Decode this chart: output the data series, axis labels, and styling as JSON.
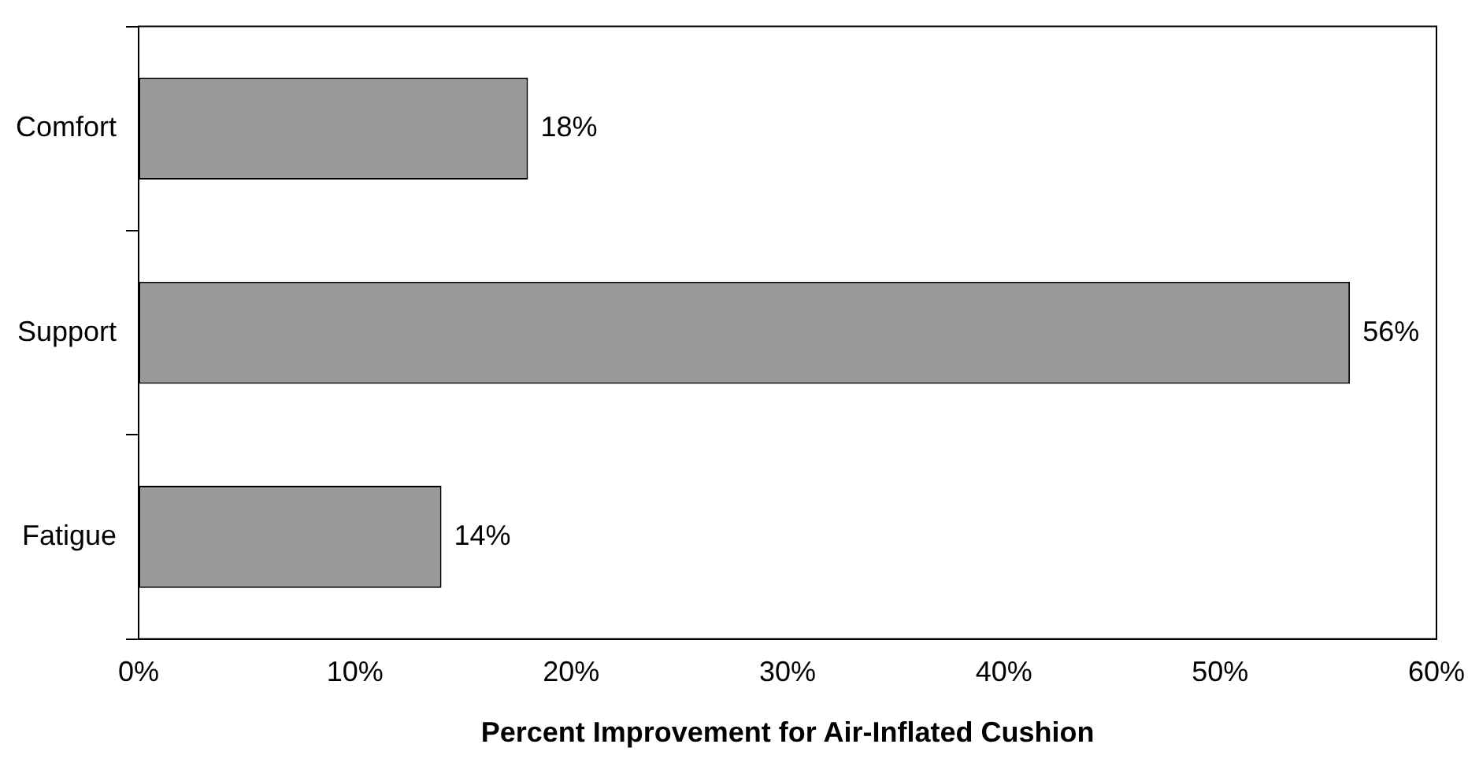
{
  "chart_data": {
    "type": "bar",
    "orientation": "horizontal",
    "xlabel": "Percent Improvement for Air-Inflated Cushion",
    "categories": [
      "Comfort",
      "Support",
      "Fatigue"
    ],
    "values": [
      18,
      56,
      14
    ],
    "color": "#999999",
    "value_labels": [
      "18%",
      "56%",
      "14%"
    ],
    "xlim": [
      0,
      60
    ],
    "xticks": [
      {
        "value": 0,
        "label": "0%"
      },
      {
        "value": 10,
        "label": "10%"
      },
      {
        "value": 20,
        "label": "20%"
      },
      {
        "value": 30,
        "label": "30%"
      },
      {
        "value": 40,
        "label": "40%"
      },
      {
        "value": 50,
        "label": "50%"
      },
      {
        "value": 60,
        "label": "60%"
      }
    ],
    "grid": false,
    "legend": false
  }
}
